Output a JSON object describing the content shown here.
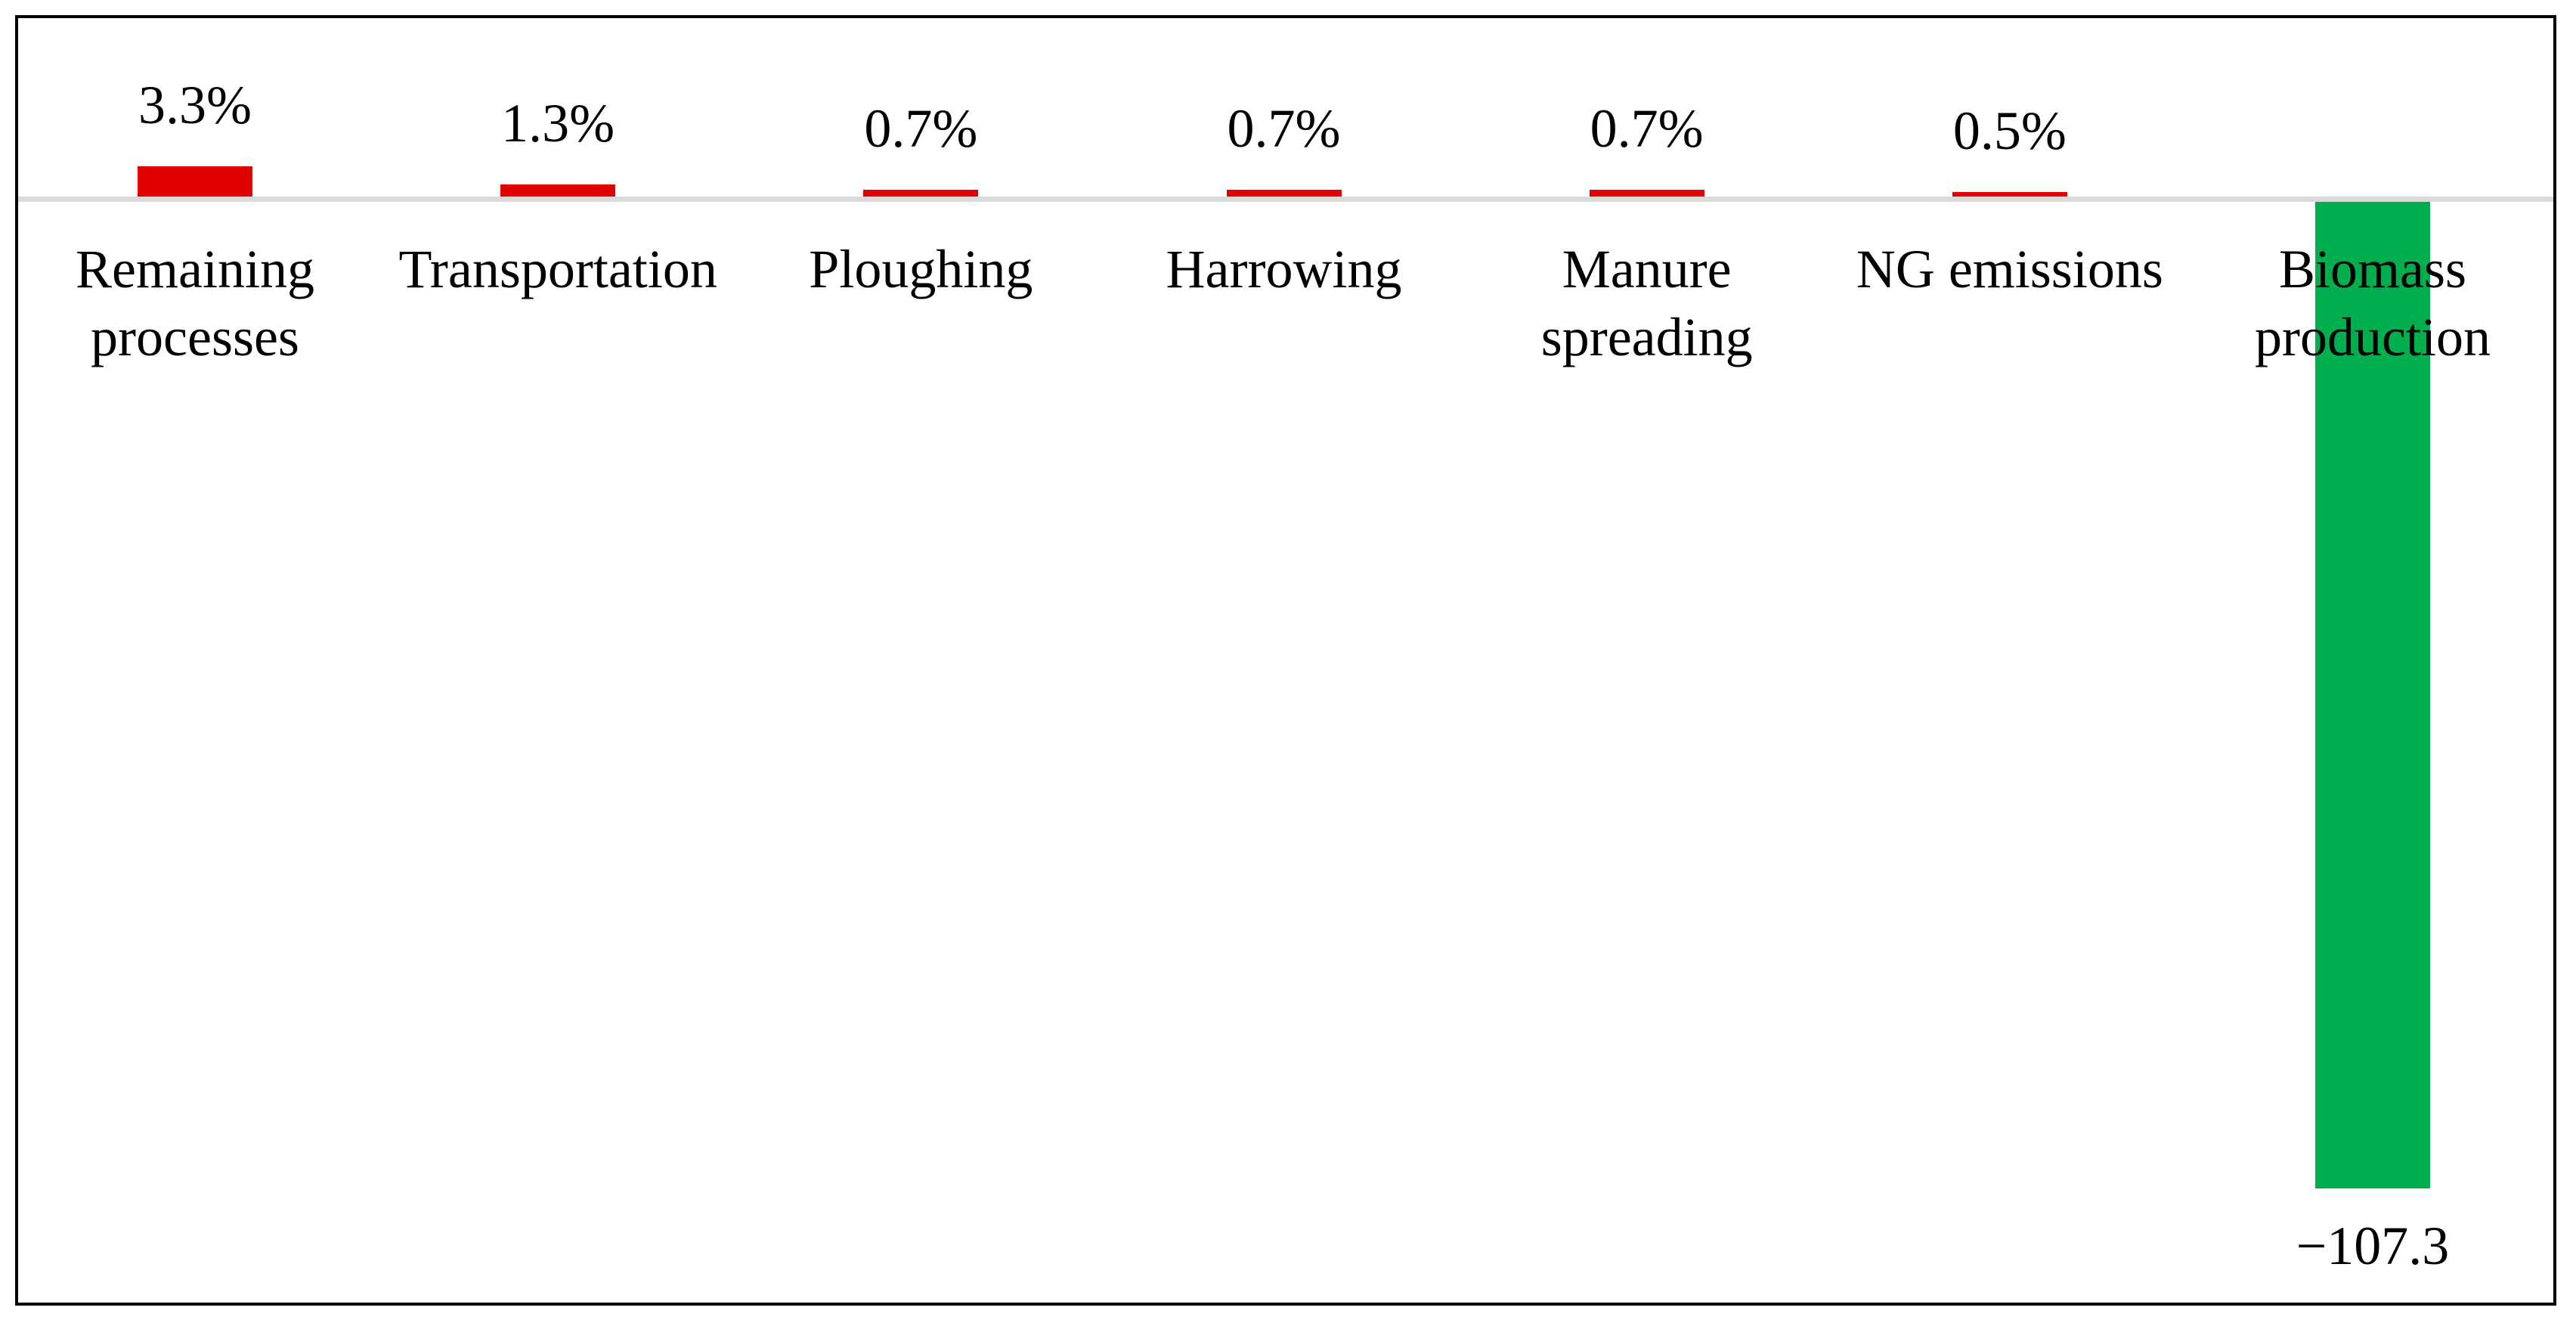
{
  "chart_data": {
    "type": "bar",
    "orientation": "vertical",
    "title": "",
    "xlabel": "",
    "ylabel": "",
    "axes_visible": false,
    "grid": false,
    "legend_position": "none",
    "zero_baseline_visible": true,
    "categories": [
      "Remaining processes",
      "Transportation",
      "Ploughing",
      "Harrowing",
      "Manure spreading",
      "NG emissions",
      "Biomass production"
    ],
    "values": [
      3.3,
      1.3,
      0.7,
      0.7,
      0.7,
      0.5,
      -107.3
    ],
    "data_labels": [
      "3.3%",
      "1.3%",
      "0.7%",
      "0.7%",
      "0.7%",
      "0.5%",
      "−107.3"
    ],
    "colors": {
      "positive_bar": "#e00000",
      "negative_bar": "#00ae4e",
      "zero_line": "#d9d9d9",
      "frame_border": "#000000",
      "text": "#000000"
    },
    "ylim": [
      -120,
      10
    ]
  }
}
